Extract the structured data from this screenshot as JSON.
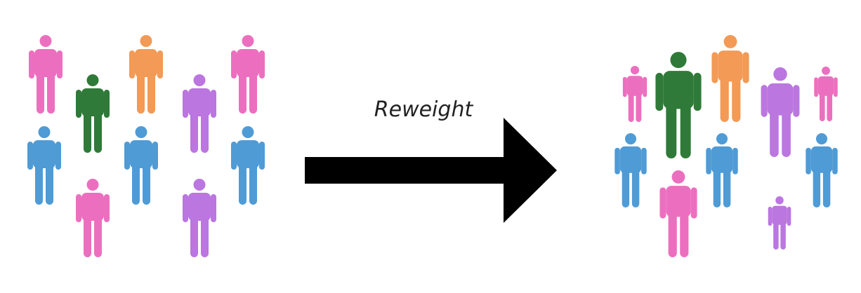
{
  "diagram": {
    "label": "Reweight",
    "colors": {
      "pink": "#ec6fbf",
      "green": "#2f7a38",
      "orange": "#f29a56",
      "purple": "#bb76e0",
      "blue": "#4f9bd6",
      "arrow": "#000000"
    },
    "left_group": {
      "people": [
        {
          "color": "pink"
        },
        {
          "color": "green"
        },
        {
          "color": "orange"
        },
        {
          "color": "purple"
        },
        {
          "color": "pink"
        },
        {
          "color": "blue"
        },
        {
          "color": "blue"
        },
        {
          "color": "blue"
        },
        {
          "color": "pink"
        },
        {
          "color": "purple"
        }
      ]
    },
    "right_group": {
      "people": [
        {
          "color": "pink"
        },
        {
          "color": "green"
        },
        {
          "color": "orange"
        },
        {
          "color": "purple"
        },
        {
          "color": "pink"
        },
        {
          "color": "blue"
        },
        {
          "color": "blue"
        },
        {
          "color": "blue"
        },
        {
          "color": "pink"
        },
        {
          "color": "purple"
        }
      ]
    }
  }
}
